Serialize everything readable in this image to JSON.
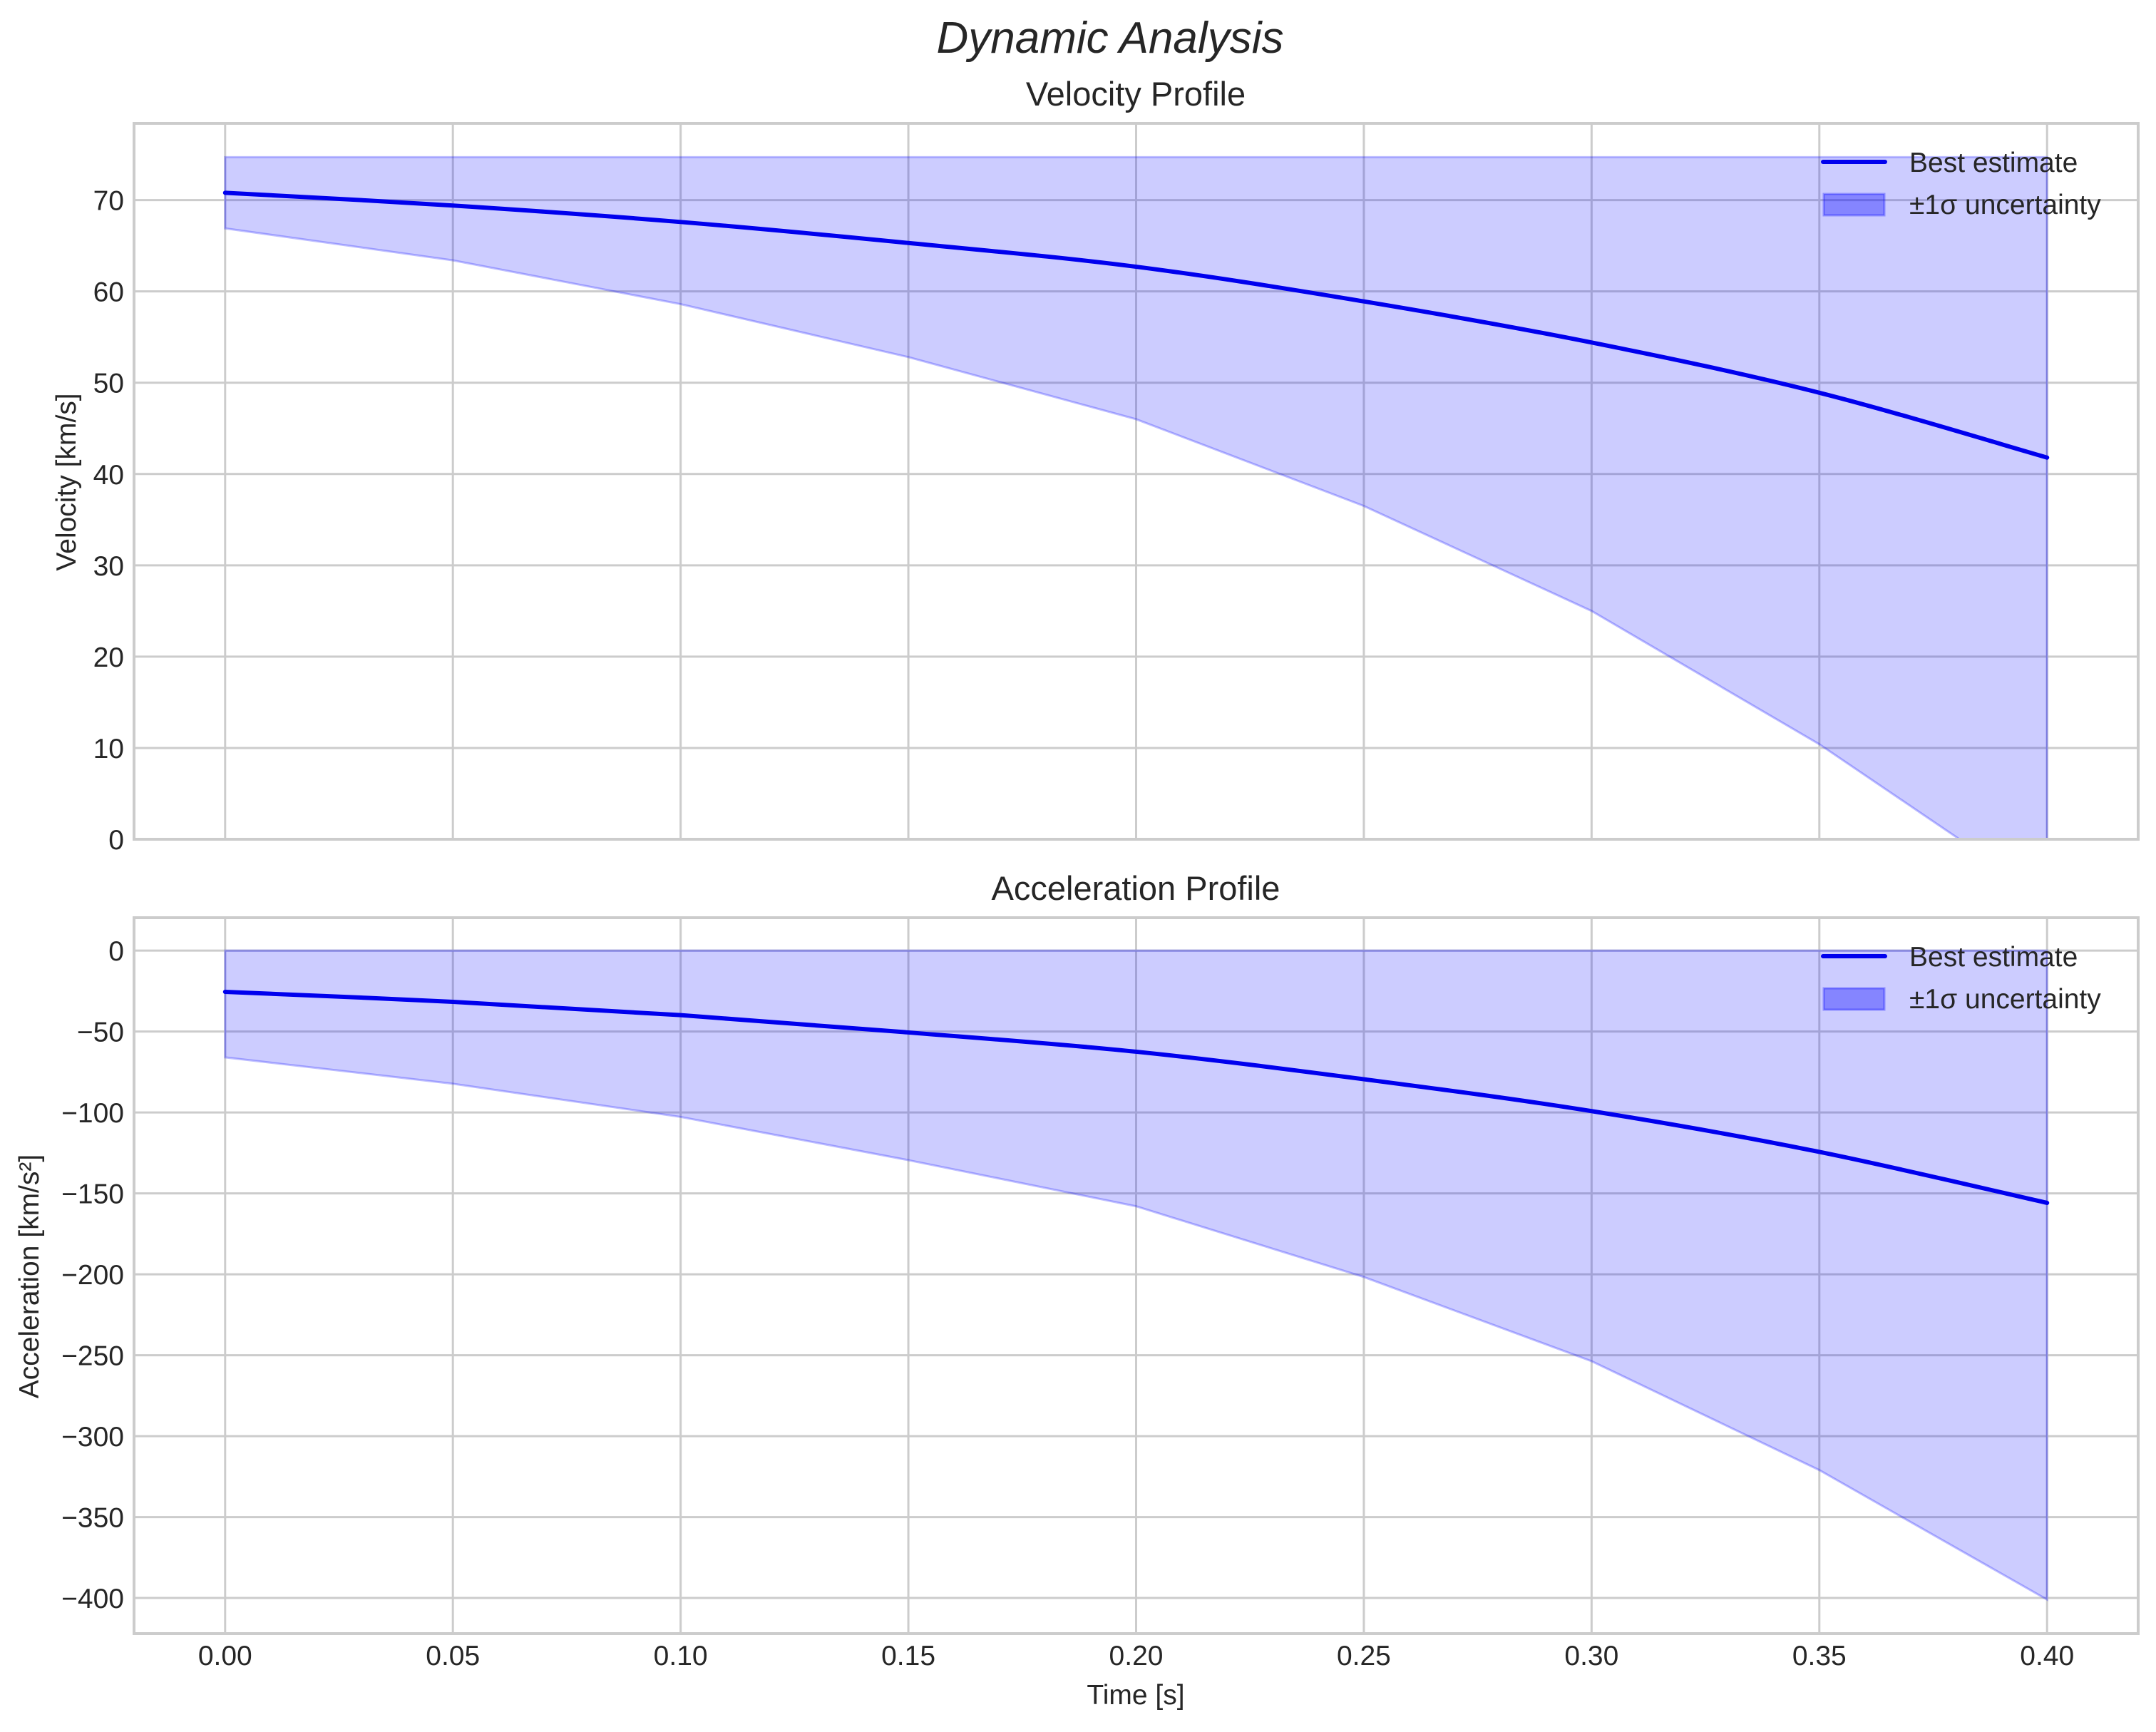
{
  "figure": {
    "title": "Dynamic Analysis",
    "background": "#ffffff"
  },
  "colors": {
    "line": "#0000EE",
    "band_fill": "#0000FF",
    "band_alpha": 0.2,
    "band_edge": "#0000FF",
    "band_edge_alpha": 0.25,
    "grid": "#CCCCCC",
    "spine": "#CCCCCC",
    "text": "#262626",
    "legend_patch": "#0000FF",
    "legend_patch_alpha": 0.35
  },
  "legend": {
    "line_label": "Best estimate",
    "band_label": "±1σ uncertainty",
    "position": "upper right",
    "frame": false
  },
  "chart_data": [
    {
      "type": "line",
      "title": "Velocity Profile",
      "xlabel": "",
      "ylabel": "Velocity [km/s]",
      "xlim": [
        -0.02,
        0.42
      ],
      "ylim": [
        0,
        78.4
      ],
      "grid": true,
      "legend_position": "upper right",
      "x_ticks": [
        0.0,
        0.05,
        0.1,
        0.15,
        0.2,
        0.25,
        0.3,
        0.35,
        0.4
      ],
      "x_tick_labels": [
        "0.00",
        "0.05",
        "0.10",
        "0.15",
        "0.20",
        "0.25",
        "0.30",
        "0.35",
        "0.40"
      ],
      "show_x_tick_labels": false,
      "y_ticks": [
        0,
        10,
        20,
        30,
        40,
        50,
        60,
        70
      ],
      "y_tick_labels": [
        "0",
        "10",
        "20",
        "30",
        "40",
        "50",
        "60",
        "70"
      ],
      "x": [
        0.0,
        0.05,
        0.1,
        0.15,
        0.2,
        0.25,
        0.3,
        0.35,
        0.4
      ],
      "series": [
        {
          "name": "Best estimate",
          "kind": "line",
          "values": [
            70.8,
            69.4,
            67.6,
            65.3,
            62.7,
            58.9,
            54.4,
            48.9,
            41.8
          ]
        },
        {
          "name": "±1σ uncertainty",
          "kind": "band",
          "lower": [
            66.9,
            63.4,
            58.6,
            52.8,
            46.0,
            36.5,
            25.0,
            10.4,
            -6.5
          ],
          "upper": [
            74.7,
            74.7,
            74.7,
            74.7,
            74.7,
            74.7,
            74.7,
            74.7,
            74.7
          ]
        }
      ]
    },
    {
      "type": "line",
      "title": "Acceleration Profile",
      "xlabel": "Time [s]",
      "ylabel": "Acceleration [km/s²]",
      "xlim": [
        -0.02,
        0.42
      ],
      "ylim": [
        -422,
        20.3
      ],
      "grid": true,
      "legend_position": "upper right",
      "x_ticks": [
        0.0,
        0.05,
        0.1,
        0.15,
        0.2,
        0.25,
        0.3,
        0.35,
        0.4
      ],
      "x_tick_labels": [
        "0.00",
        "0.05",
        "0.10",
        "0.15",
        "0.20",
        "0.25",
        "0.30",
        "0.35",
        "0.40"
      ],
      "show_x_tick_labels": true,
      "y_ticks": [
        0,
        -50,
        -100,
        -150,
        -200,
        -250,
        -300,
        -350,
        -400
      ],
      "y_tick_labels": [
        "0",
        "−50",
        "−100",
        "−150",
        "−200",
        "−250",
        "−300",
        "−350",
        "−400"
      ],
      "x": [
        0.0,
        0.05,
        0.1,
        0.15,
        0.2,
        0.25,
        0.3,
        0.35,
        0.4
      ],
      "series": [
        {
          "name": "Best estimate",
          "kind": "line",
          "values": [
            -25.5,
            -31.7,
            -39.9,
            -50.6,
            -62.5,
            -79.5,
            -99.2,
            -124.4,
            -155.9
          ]
        },
        {
          "name": "±1σ uncertainty",
          "kind": "band",
          "lower": [
            -66.0,
            -82.3,
            -102.8,
            -129.5,
            -158.0,
            -201.7,
            -253.7,
            -321.0,
            -401.0
          ],
          "upper": [
            0,
            0,
            0,
            0,
            0,
            0,
            0,
            0,
            0
          ]
        }
      ]
    }
  ]
}
